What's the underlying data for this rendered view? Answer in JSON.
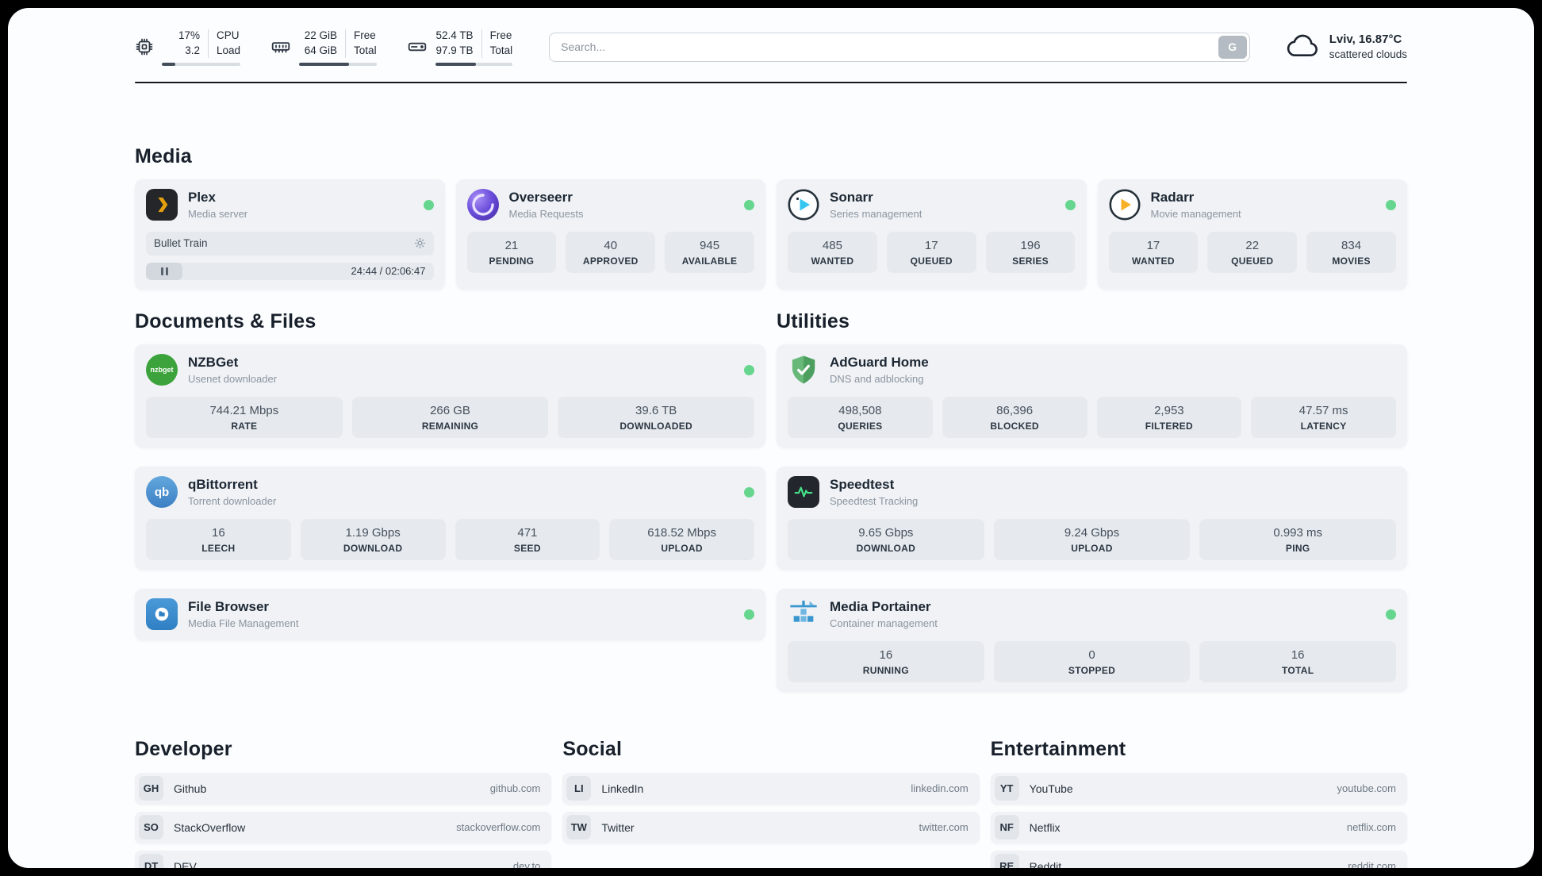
{
  "topbar": {
    "cpu": {
      "value_top": "17%",
      "value_bottom": "3.2",
      "label_top": "CPU",
      "label_bottom": "Load",
      "bar_percent": 17
    },
    "memory": {
      "value_top": "22 GiB",
      "value_bottom": "64 GiB",
      "label_top": "Free",
      "label_bottom": "Total",
      "bar_percent": 65
    },
    "storage": {
      "value_top": "52.4 TB",
      "value_bottom": "97.9 TB",
      "label_top": "Free",
      "label_bottom": "Total",
      "bar_percent": 53
    },
    "search": {
      "placeholder": "Search...",
      "button_label": "G"
    },
    "weather": {
      "location": "Lviv, 16.87°C",
      "description": "scattered clouds"
    }
  },
  "sections": {
    "media": "Media",
    "documents": "Documents & Files",
    "utilities": "Utilities"
  },
  "apps": {
    "plex": {
      "title": "Plex",
      "subtitle": "Media server",
      "now_playing": "Bullet Train",
      "time": "24:44 / 02:06:47"
    },
    "overseerr": {
      "title": "Overseerr",
      "subtitle": "Media Requests",
      "stats": [
        {
          "value": "21",
          "label": "PENDING"
        },
        {
          "value": "40",
          "label": "APPROVED"
        },
        {
          "value": "945",
          "label": "AVAILABLE"
        }
      ]
    },
    "sonarr": {
      "title": "Sonarr",
      "subtitle": "Series management",
      "stats": [
        {
          "value": "485",
          "label": "WANTED"
        },
        {
          "value": "17",
          "label": "QUEUED"
        },
        {
          "value": "196",
          "label": "SERIES"
        }
      ]
    },
    "radarr": {
      "title": "Radarr",
      "subtitle": "Movie management",
      "stats": [
        {
          "value": "17",
          "label": "WANTED"
        },
        {
          "value": "22",
          "label": "QUEUED"
        },
        {
          "value": "834",
          "label": "MOVIES"
        }
      ]
    },
    "nzbget": {
      "title": "NZBGet",
      "subtitle": "Usenet downloader",
      "icon_text": "nzbget",
      "stats": [
        {
          "value": "744.21 Mbps",
          "label": "RATE"
        },
        {
          "value": "266 GB",
          "label": "REMAINING"
        },
        {
          "value": "39.6 TB",
          "label": "DOWNLOADED"
        }
      ]
    },
    "qbittorrent": {
      "title": "qBittorrent",
      "subtitle": "Torrent downloader",
      "icon_text": "qb",
      "stats": [
        {
          "value": "16",
          "label": "LEECH"
        },
        {
          "value": "1.19 Gbps",
          "label": "DOWNLOAD"
        },
        {
          "value": "471",
          "label": "SEED"
        },
        {
          "value": "618.52 Mbps",
          "label": "UPLOAD"
        }
      ]
    },
    "filebrowser": {
      "title": "File Browser",
      "subtitle": "Media File Management"
    },
    "adguard": {
      "title": "AdGuard Home",
      "subtitle": "DNS and adblocking",
      "stats": [
        {
          "value": "498,508",
          "label": "QUERIES"
        },
        {
          "value": "86,396",
          "label": "BLOCKED"
        },
        {
          "value": "2,953",
          "label": "FILTERED"
        },
        {
          "value": "47.57 ms",
          "label": "LATENCY"
        }
      ]
    },
    "speedtest": {
      "title": "Speedtest",
      "subtitle": "Speedtest Tracking",
      "stats": [
        {
          "value": "9.65 Gbps",
          "label": "DOWNLOAD"
        },
        {
          "value": "9.24 Gbps",
          "label": "UPLOAD"
        },
        {
          "value": "0.993 ms",
          "label": "PING"
        }
      ]
    },
    "portainer": {
      "title": "Media Portainer",
      "subtitle": "Container management",
      "stats": [
        {
          "value": "16",
          "label": "RUNNING"
        },
        {
          "value": "0",
          "label": "STOPPED"
        },
        {
          "value": "16",
          "label": "TOTAL"
        }
      ]
    }
  },
  "bookmarks": {
    "developer": {
      "title": "Developer",
      "items": [
        {
          "abbr": "GH",
          "name": "Github",
          "url": "github.com"
        },
        {
          "abbr": "SO",
          "name": "StackOverflow",
          "url": "stackoverflow.com"
        },
        {
          "abbr": "DT",
          "name": "DEV",
          "url": "dev.to"
        }
      ]
    },
    "social": {
      "title": "Social",
      "items": [
        {
          "abbr": "LI",
          "name": "LinkedIn",
          "url": "linkedin.com"
        },
        {
          "abbr": "TW",
          "name": "Twitter",
          "url": "twitter.com"
        }
      ]
    },
    "entertainment": {
      "title": "Entertainment",
      "items": [
        {
          "abbr": "YT",
          "name": "YouTube",
          "url": "youtube.com"
        },
        {
          "abbr": "NF",
          "name": "Netflix",
          "url": "netflix.com"
        },
        {
          "abbr": "RE",
          "name": "Reddit",
          "url": "reddit.com"
        }
      ]
    }
  },
  "colors": {
    "status_online": "#66d68f",
    "plex_accent": "#e5a00d",
    "sonarr_accent": "#35c5f1",
    "radarr_accent": "#f7b129",
    "adguard_accent": "#5ba86d",
    "speedtest_accent": "#45e08a"
  }
}
